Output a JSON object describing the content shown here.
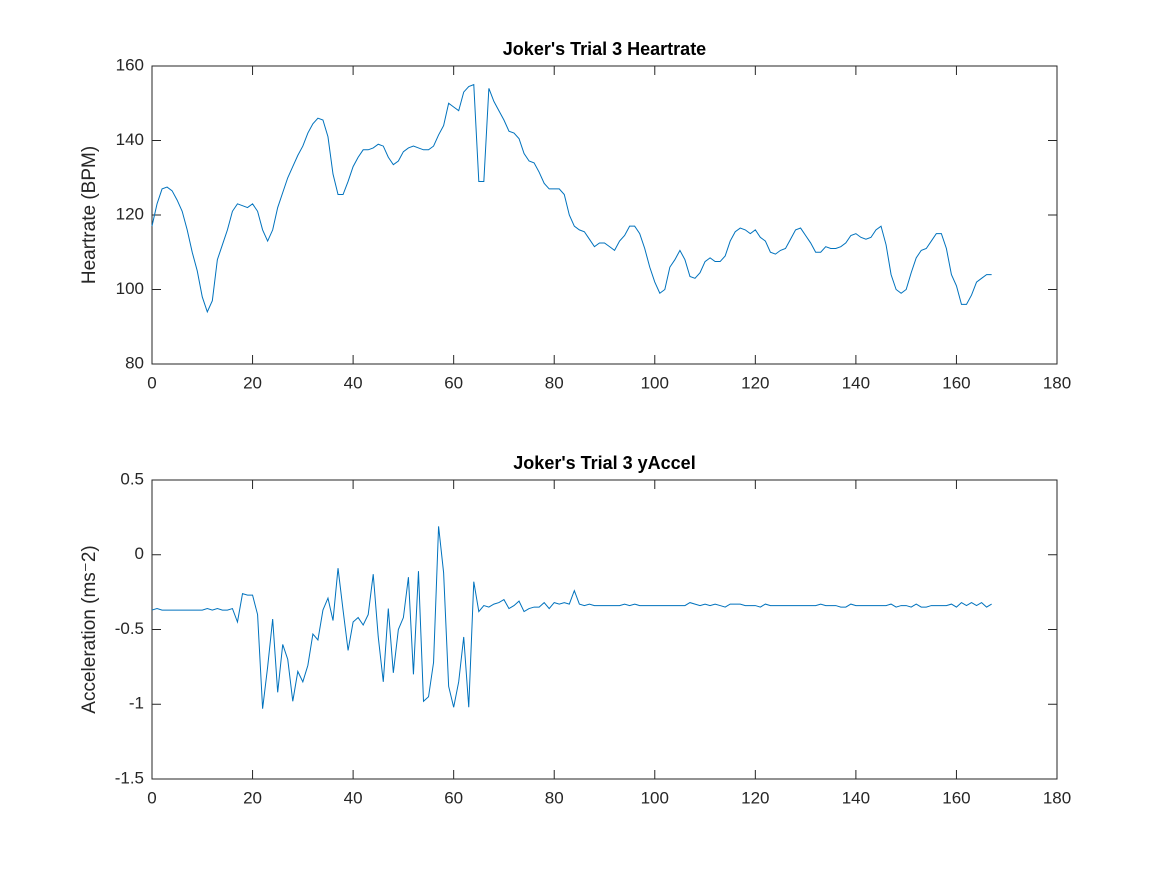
{
  "chart_data": [
    {
      "type": "line",
      "title": "Joker's Trial 3 Heartrate",
      "y_label": "Heartrate (BPM)",
      "color": "#0072bd",
      "xlim": [
        0,
        180
      ],
      "xticks": [
        0,
        20,
        40,
        60,
        80,
        100,
        120,
        140,
        160,
        180
      ],
      "ylim": [
        80,
        160
      ],
      "yticks": [
        80,
        100,
        120,
        140,
        160
      ],
      "x": [
        0,
        1,
        2,
        3,
        4,
        5,
        6,
        7,
        8,
        9,
        10,
        11,
        12,
        13,
        14,
        15,
        16,
        17,
        18,
        19,
        20,
        21,
        22,
        23,
        24,
        25,
        26,
        27,
        28,
        29,
        30,
        31,
        32,
        33,
        34,
        35,
        36,
        37,
        38,
        39,
        40,
        41,
        42,
        43,
        44,
        45,
        46,
        47,
        48,
        49,
        50,
        51,
        52,
        53,
        54,
        55,
        56,
        57,
        58,
        59,
        60,
        61,
        62,
        63,
        64,
        65,
        66,
        67,
        68,
        69,
        70,
        71,
        72,
        73,
        74,
        75,
        76,
        77,
        78,
        79,
        80,
        81,
        82,
        83,
        84,
        85,
        86,
        87,
        88,
        89,
        90,
        91,
        92,
        93,
        94,
        95,
        96,
        97,
        98,
        99,
        100,
        101,
        102,
        103,
        104,
        105,
        106,
        107,
        108,
        109,
        110,
        111,
        112,
        113,
        114,
        115,
        116,
        117,
        118,
        119,
        120,
        121,
        122,
        123,
        124,
        125,
        126,
        127,
        128,
        129,
        130,
        131,
        132,
        133,
        134,
        135,
        136,
        137,
        138,
        139,
        140,
        141,
        142,
        143,
        144,
        145,
        146,
        147,
        148,
        149,
        150,
        151,
        152,
        153,
        154,
        155,
        156,
        157,
        158,
        159,
        160,
        161,
        162,
        163,
        164,
        165,
        166,
        167
      ],
      "values": [
        117,
        123,
        127,
        127.5,
        126.5,
        124,
        121,
        116,
        110,
        105,
        98,
        94,
        97,
        108,
        112,
        116,
        121,
        123,
        122.5,
        122,
        123,
        121,
        116,
        113,
        116,
        122,
        126,
        130,
        133,
        136,
        138.5,
        142,
        144.5,
        146,
        145.5,
        141,
        131,
        125.5,
        125.5,
        129,
        133,
        135.5,
        137.5,
        137.5,
        138,
        139,
        138.5,
        135.5,
        133.5,
        134.5,
        137,
        138,
        138.5,
        138,
        137.5,
        137.5,
        138.5,
        141.5,
        144,
        150,
        149,
        148,
        153,
        154.5,
        155,
        129,
        129,
        154,
        150.5,
        148,
        145.5,
        142.5,
        142,
        140.5,
        136.5,
        134.5,
        134,
        131.5,
        128.5,
        127,
        127,
        127,
        125.5,
        120,
        117,
        116,
        115.5,
        113.5,
        111.5,
        112.5,
        112.5,
        111.5,
        110.5,
        113,
        114.5,
        117,
        117,
        115,
        111,
        106,
        102,
        99,
        100,
        106,
        108,
        110.5,
        108,
        103.5,
        103,
        104.5,
        107.5,
        108.5,
        107.5,
        107.5,
        109,
        113,
        115.5,
        116.5,
        116,
        115,
        116,
        114,
        113,
        110,
        109.5,
        110.5,
        111,
        113.5,
        116,
        116.5,
        114.5,
        112.5,
        110,
        110,
        111.5,
        111,
        111,
        111.5,
        112.5,
        114.5,
        115,
        114,
        113.5,
        114,
        116,
        117,
        112,
        104,
        100,
        99,
        100,
        104.5,
        108.5,
        110.5,
        111,
        113,
        115,
        115,
        111,
        104,
        101,
        96,
        96,
        98.5,
        102,
        103,
        104,
        104
      ]
    },
    {
      "type": "line",
      "title": "Joker's Trial 3 yAccel",
      "y_label": "Acceleration (ms⁻2)",
      "color": "#0072bd",
      "xlim": [
        0,
        180
      ],
      "xticks": [
        0,
        20,
        40,
        60,
        80,
        100,
        120,
        140,
        160,
        180
      ],
      "ylim": [
        -1.5,
        0.5
      ],
      "yticks": [
        -1.5,
        -1,
        -0.5,
        0,
        0.5
      ],
      "x": [
        0,
        1,
        2,
        3,
        4,
        5,
        6,
        7,
        8,
        9,
        10,
        11,
        12,
        13,
        14,
        15,
        16,
        17,
        18,
        19,
        20,
        21,
        22,
        23,
        24,
        25,
        26,
        27,
        28,
        29,
        30,
        31,
        32,
        33,
        34,
        35,
        36,
        37,
        38,
        39,
        40,
        41,
        42,
        43,
        44,
        45,
        46,
        47,
        48,
        49,
        50,
        51,
        52,
        53,
        54,
        55,
        56,
        57,
        58,
        59,
        60,
        61,
        62,
        63,
        64,
        65,
        66,
        67,
        68,
        69,
        70,
        71,
        72,
        73,
        74,
        75,
        76,
        77,
        78,
        79,
        80,
        81,
        82,
        83,
        84,
        85,
        86,
        87,
        88,
        89,
        90,
        91,
        92,
        93,
        94,
        95,
        96,
        97,
        98,
        99,
        100,
        101,
        102,
        103,
        104,
        105,
        106,
        107,
        108,
        109,
        110,
        111,
        112,
        113,
        114,
        115,
        116,
        117,
        118,
        119,
        120,
        121,
        122,
        123,
        124,
        125,
        126,
        127,
        128,
        129,
        130,
        131,
        132,
        133,
        134,
        135,
        136,
        137,
        138,
        139,
        140,
        141,
        142,
        143,
        144,
        145,
        146,
        147,
        148,
        149,
        150,
        151,
        152,
        153,
        154,
        155,
        156,
        157,
        158,
        159,
        160,
        161,
        162,
        163,
        164,
        165,
        166,
        167
      ],
      "values": [
        -0.37,
        -0.36,
        -0.37,
        -0.37,
        -0.37,
        -0.37,
        -0.37,
        -0.37,
        -0.37,
        -0.37,
        -0.37,
        -0.36,
        -0.37,
        -0.36,
        -0.37,
        -0.37,
        -0.36,
        -0.45,
        -0.26,
        -0.27,
        -0.27,
        -0.4,
        -1.03,
        -0.75,
        -0.43,
        -0.92,
        -0.6,
        -0.7,
        -0.98,
        -0.78,
        -0.85,
        -0.74,
        -0.53,
        -0.57,
        -0.37,
        -0.29,
        -0.44,
        -0.09,
        -0.37,
        -0.64,
        -0.45,
        -0.42,
        -0.47,
        -0.4,
        -0.13,
        -0.55,
        -0.85,
        -0.36,
        -0.79,
        -0.5,
        -0.42,
        -0.15,
        -0.8,
        -0.11,
        -0.98,
        -0.95,
        -0.72,
        0.19,
        -0.12,
        -0.88,
        -1.02,
        -0.85,
        -0.55,
        -1.02,
        -0.18,
        -0.38,
        -0.34,
        -0.35,
        -0.33,
        -0.32,
        -0.3,
        -0.36,
        -0.34,
        -0.31,
        -0.38,
        -0.36,
        -0.35,
        -0.35,
        -0.32,
        -0.36,
        -0.32,
        -0.33,
        -0.32,
        -0.33,
        -0.24,
        -0.33,
        -0.34,
        -0.33,
        -0.34,
        -0.34,
        -0.34,
        -0.34,
        -0.34,
        -0.34,
        -0.33,
        -0.34,
        -0.33,
        -0.34,
        -0.34,
        -0.34,
        -0.34,
        -0.34,
        -0.34,
        -0.34,
        -0.34,
        -0.34,
        -0.34,
        -0.32,
        -0.33,
        -0.34,
        -0.33,
        -0.34,
        -0.33,
        -0.34,
        -0.35,
        -0.33,
        -0.33,
        -0.33,
        -0.34,
        -0.34,
        -0.34,
        -0.35,
        -0.33,
        -0.34,
        -0.34,
        -0.34,
        -0.34,
        -0.34,
        -0.34,
        -0.34,
        -0.34,
        -0.34,
        -0.34,
        -0.33,
        -0.34,
        -0.34,
        -0.34,
        -0.35,
        -0.35,
        -0.33,
        -0.34,
        -0.34,
        -0.34,
        -0.34,
        -0.34,
        -0.34,
        -0.34,
        -0.33,
        -0.35,
        -0.34,
        -0.34,
        -0.35,
        -0.33,
        -0.35,
        -0.35,
        -0.34,
        -0.34,
        -0.34,
        -0.34,
        -0.33,
        -0.35,
        -0.32,
        -0.34,
        -0.32,
        -0.34,
        -0.32,
        -0.35,
        -0.33
      ]
    }
  ]
}
